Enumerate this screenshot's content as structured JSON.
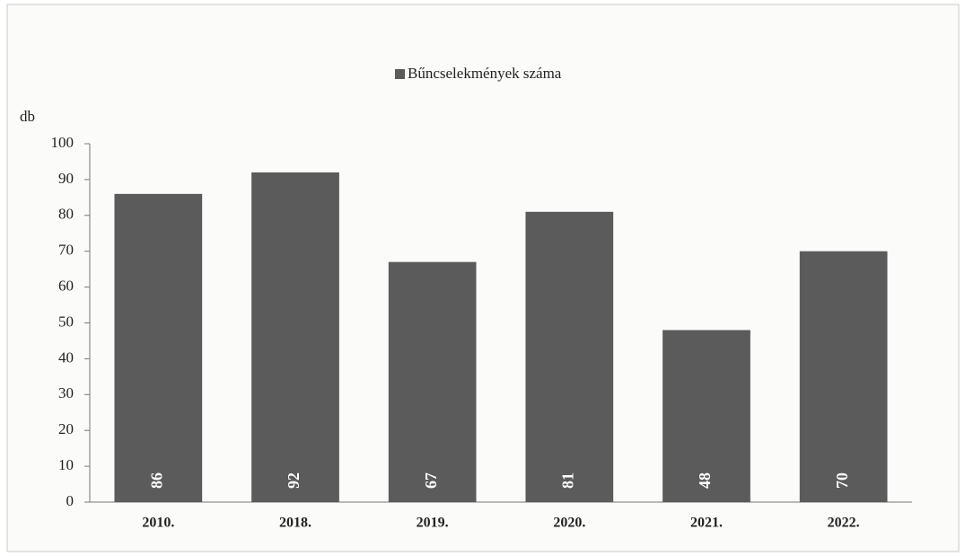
{
  "chart_data": {
    "type": "bar",
    "y_label": "db",
    "categories": [
      "2010.",
      "2018.",
      "2019.",
      "2020.",
      "2021.",
      "2022."
    ],
    "series": [
      {
        "name": "Bűncselekmények száma",
        "color": "#5b5b5b",
        "values": [
          86,
          92,
          67,
          81,
          48,
          70
        ]
      }
    ],
    "ylim": [
      0,
      100
    ],
    "yticks": [
      0,
      10,
      20,
      30,
      40,
      50,
      60,
      70,
      80,
      90,
      100
    ],
    "legend": "top"
  }
}
